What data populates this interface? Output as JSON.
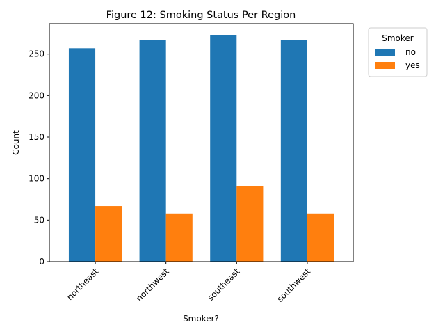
{
  "chart_data": {
    "type": "bar",
    "title": "Figure 12: Smoking Status Per Region",
    "xlabel": "Smoker?",
    "ylabel": "Count",
    "categories": [
      "northeast",
      "northwest",
      "southeast",
      "southwest"
    ],
    "series": [
      {
        "name": "no",
        "color": "#1f77b4",
        "values": [
          257,
          267,
          273,
          267
        ]
      },
      {
        "name": "yes",
        "color": "#ff7f0e",
        "values": [
          67,
          58,
          91,
          58
        ]
      }
    ],
    "ylim": [
      0,
      286.6
    ],
    "yticks": [
      0,
      50,
      100,
      150,
      200,
      250
    ],
    "grid": false,
    "legend": {
      "title": "Smoker",
      "placement": "outside-right-top"
    }
  }
}
